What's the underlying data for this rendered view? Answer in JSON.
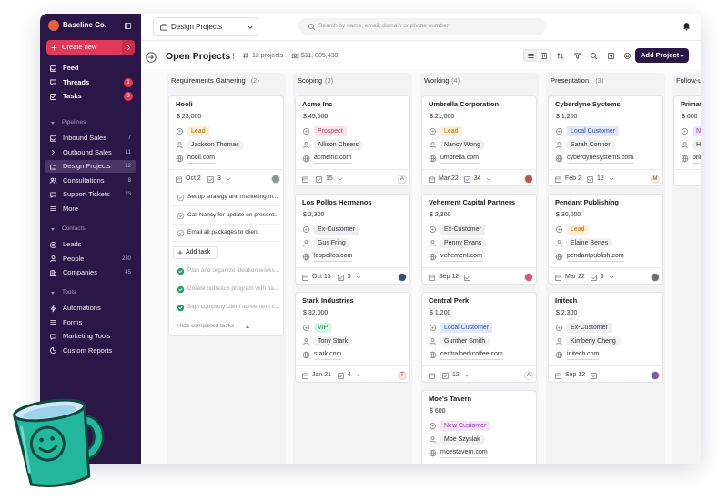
{
  "sidebar": {
    "workspace": "Baseline Co.",
    "create": "Create new",
    "top": [
      {
        "label": "Feed"
      },
      {
        "label": "Threads",
        "badge": "1"
      },
      {
        "label": "Tasks",
        "badge": "3"
      }
    ],
    "sections": [
      {
        "title": "Pipelines",
        "items": [
          {
            "label": "Inbound Sales",
            "count": "7"
          },
          {
            "label": "Outbound Sales",
            "count": "11"
          },
          {
            "label": "Design Projects",
            "count": "12",
            "active": true
          },
          {
            "label": "Consultations",
            "count": "8"
          },
          {
            "label": "Support Tickets",
            "count": "23"
          },
          {
            "label": "More"
          }
        ]
      },
      {
        "title": "Contacts",
        "items": [
          {
            "label": "Leads"
          },
          {
            "label": "People",
            "count": "230"
          },
          {
            "label": "Companies",
            "count": "45"
          }
        ]
      },
      {
        "title": "Tools",
        "items": [
          {
            "label": "Automations"
          },
          {
            "label": "Forms"
          },
          {
            "label": "Marketing Tools"
          },
          {
            "label": "Custom Reports"
          }
        ]
      }
    ]
  },
  "topbar": {
    "pipeline": "Design Projects",
    "search": "Search by name, email, domain or phone number"
  },
  "header": {
    "title": "Open Projects",
    "projects": "12 projects",
    "total": "$11, 005,438",
    "add": "Add Project"
  },
  "columns": [
    {
      "name": "Requirements Gathering",
      "count": "(2)",
      "cards": [
        {
          "name": "Hooli",
          "amount": "$ 23,000",
          "tag": "Lead",
          "tag_color": "orange",
          "person": "Jackson Thomas",
          "domain": "hooli.com",
          "date": "Oct 2",
          "tasks": "3",
          "avatar_color": "#8a9a8e",
          "todo": [
            "Set up strategy and marketing m...",
            "Call Nancy for update on present...",
            "Email all packages to client"
          ],
          "add_task": "Add task",
          "done": [
            "Plan and organize ideation works...",
            "Create outreach program with pa...",
            "Sign company client agreement c..."
          ],
          "hide": "Hide completed tasks"
        }
      ]
    },
    {
      "name": "Scoping",
      "count": "(3)",
      "cards": [
        {
          "name": "Acme Inc",
          "amount": "$ 45,000",
          "tag": "Prospect",
          "tag_color": "pink",
          "person": "Allison Cheers",
          "domain": "acmeinc.com",
          "tasks": "15",
          "avatar": "A",
          "avatar_color": "#ffffff"
        },
        {
          "name": "Los Pollos Hermanos",
          "amount": "$ 2,300",
          "tag": "Ex-Customer",
          "tag_color": "gray",
          "person": "Gus Fring",
          "domain": "lospollos.com",
          "date": "Oct 13",
          "tasks": "5",
          "avatar_color": "#3b4a7a"
        },
        {
          "name": "Stark Industries",
          "amount": "$ 32,000",
          "tag": "VIP",
          "tag_color": "green",
          "person": "Tony Stark",
          "domain": "stark.com",
          "date": "Jan 21",
          "tasks": "4",
          "avatar": "T",
          "avatar_color": "#fde2e2"
        }
      ]
    },
    {
      "name": "Working",
      "count": "(4)",
      "cards": [
        {
          "name": "Umbrella Corporation",
          "amount": "$ 21,000",
          "tag": "Lead",
          "tag_color": "orange",
          "person": "Nancy Wong",
          "domain": "umbrella.com",
          "date": "Mar 22",
          "tasks": "34",
          "avatar_color": "#b5584e"
        },
        {
          "name": "Vehement Capital Partners",
          "amount": "$ 2,300",
          "tag": "Ex-Customer",
          "tag_color": "gray",
          "person": "Penny Evans",
          "domain": "vehement.com",
          "date": "Sep 12",
          "avatar_color": "#d05a7a"
        },
        {
          "name": "Central Perk",
          "amount": "$ 1,200",
          "tag": "Local Customer",
          "tag_color": "blue",
          "person": "Gunther Smith",
          "domain": "centralperkcoffee.com",
          "tasks": "12",
          "avatar": "A",
          "avatar_color": "#ffffff"
        },
        {
          "name": "Moe's Tavern",
          "amount": "$ 600",
          "tag": "New Customer",
          "tag_color": "purple",
          "person": "Moe Szyslak",
          "domain": "moestavern.com"
        }
      ]
    },
    {
      "name": "Presentation",
      "count": "(3)",
      "cards": [
        {
          "name": "Cyberdyne Systems",
          "amount": "$ 1,200",
          "tag": "Local Customer",
          "tag_color": "blue",
          "person": "Sarah Connor",
          "domain": "cyberdynesystems.com",
          "date": "Feb 2",
          "tasks": "12",
          "avatar": "M",
          "avatar_color": "#fdebd3"
        },
        {
          "name": "Pendant Publishing",
          "amount": "$ 30,000",
          "tag": "Lead",
          "tag_color": "orange",
          "person": "Elaine Benes",
          "domain": "pendantpublish.com",
          "date": "Mar 22",
          "tasks": "5",
          "avatar_color": "#6b6f78"
        },
        {
          "name": "Initech",
          "amount": "$ 2,300",
          "tag": "Ex-Customer",
          "tag_color": "gray",
          "person": "Kimberly Cheng",
          "domain": "initech.com",
          "date": "Sep 12",
          "avatar_color": "#7a5aa0"
        }
      ]
    },
    {
      "name": "Follow-up",
      "cards": [
        {
          "name": "Primated",
          "amount": "$ 600",
          "tag": "New",
          "tag_color": "purple",
          "person": "Hiro",
          "domain": "prima"
        }
      ]
    }
  ]
}
